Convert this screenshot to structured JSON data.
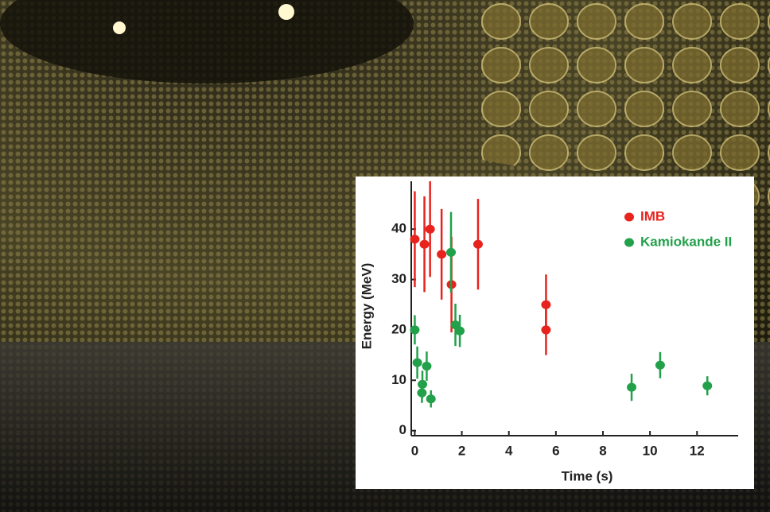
{
  "chart_data": {
    "type": "scatter",
    "x_label": "Time (s)",
    "y_label": "Energy (MeV)",
    "xlim": [
      -0.15,
      13.75
    ],
    "ylim": [
      -1,
      49.5
    ],
    "xticks": [
      0,
      2,
      4,
      6,
      8,
      10,
      12
    ],
    "yticks": [
      0,
      10,
      20,
      30,
      40
    ],
    "legend": "upper right",
    "series": [
      {
        "name": "IMB",
        "color": "#e8231e",
        "x": [
          0,
          0.41,
          0.65,
          1.14,
          1.56,
          2.69,
          5.58,
          5.58
        ],
        "values": [
          38,
          37,
          40,
          35,
          29,
          37,
          25,
          20
        ],
        "errors": [
          9.5,
          9.5,
          9.5,
          9,
          9.5,
          9,
          6,
          5
        ]
      },
      {
        "name": "Kamiokande II",
        "color": "#22a04a",
        "x": [
          0,
          0.107,
          0.303,
          0.324,
          0.507,
          0.686,
          1.541,
          1.728,
          1.915,
          9.219,
          10.433,
          12.439
        ],
        "values": [
          20,
          13.5,
          7.5,
          9.2,
          12.8,
          6.3,
          35.4,
          21,
          19.8,
          8.6,
          13,
          8.9
        ],
        "errors": [
          2.9,
          3.2,
          2,
          2.7,
          2.9,
          1.7,
          8,
          4.2,
          3.2,
          2.7,
          2.6,
          1.9
        ]
      }
    ]
  }
}
